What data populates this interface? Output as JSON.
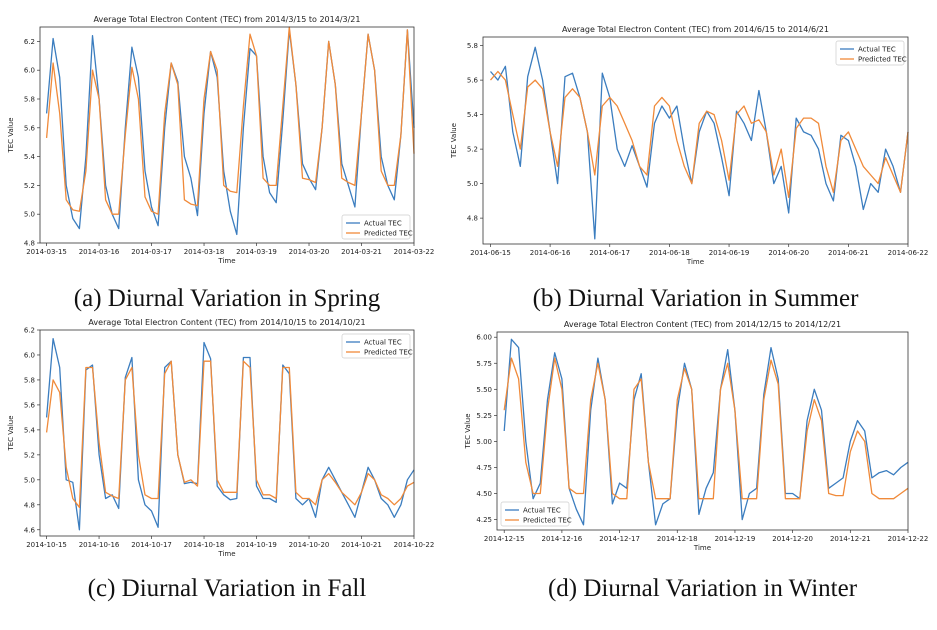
{
  "colors": {
    "actual": "#3b7dbf",
    "predicted": "#f08a3a"
  },
  "chart_data": [
    {
      "type": "line",
      "title": "Average Total Electron Content (TEC) from 2014/3/15 to 2014/3/21",
      "xlabel": "Time",
      "ylabel": "TEC Value",
      "caption": "(a) Diurnal Variation in Spring",
      "legend": "bottom-right",
      "xlim": [
        "2014-03-14T21:00",
        "2014-03-22T00:00"
      ],
      "ylim": [
        4.8,
        6.3
      ],
      "x_ticks": [
        "2014-03-15",
        "2014-03-16",
        "2014-03-17",
        "2014-03-18",
        "2014-03-19",
        "2014-03-20",
        "2014-03-21",
        "2014-03-22"
      ],
      "y_ticks": [
        "4.8",
        "5.0",
        "5.2",
        "5.4",
        "5.6",
        "5.8",
        "6.0",
        "6.2"
      ],
      "x_day_values": [
        0,
        0.125,
        0.25,
        0.375,
        0.5,
        0.625,
        0.75,
        0.875,
        1,
        1.125,
        1.25,
        1.375,
        1.5,
        1.625,
        1.75,
        1.875,
        2,
        2.125,
        2.25,
        2.375,
        2.5,
        2.625,
        2.75,
        2.875,
        3,
        3.125,
        3.25,
        3.375,
        3.5,
        3.625,
        3.75,
        3.875,
        4,
        4.125,
        4.25,
        4.375,
        4.5,
        4.625,
        4.75,
        4.875,
        5,
        5.125,
        5.25,
        5.375,
        5.5,
        5.625,
        5.75,
        5.875,
        6,
        6.125,
        6.25,
        6.375,
        6.5,
        6.625,
        6.75,
        6.875,
        7
      ],
      "series": [
        {
          "name": "Actual TEC",
          "values": [
            5.7,
            6.22,
            5.95,
            5.2,
            4.97,
            4.9,
            5.4,
            6.24,
            5.8,
            5.2,
            5.0,
            4.9,
            5.6,
            6.16,
            5.95,
            5.3,
            5.05,
            4.92,
            5.6,
            6.05,
            5.92,
            5.4,
            5.25,
            4.99,
            5.7,
            6.13,
            5.95,
            5.3,
            5.02,
            4.86,
            5.6,
            6.15,
            6.1,
            5.4,
            5.15,
            5.08,
            5.65,
            6.28,
            5.9,
            5.35,
            5.25,
            5.17,
            5.6,
            6.2,
            5.9,
            5.35,
            5.2,
            5.05,
            5.7,
            6.25,
            6.0,
            5.4,
            5.2,
            5.1,
            5.55,
            6.28,
            5.6
          ]
        },
        {
          "name": "Predicted TEC",
          "values": [
            5.53,
            6.05,
            5.7,
            5.1,
            5.03,
            5.02,
            5.3,
            6.0,
            5.8,
            5.1,
            5.0,
            5.0,
            5.55,
            6.02,
            5.8,
            5.12,
            5.02,
            5.0,
            5.7,
            6.05,
            5.9,
            5.1,
            5.07,
            5.06,
            5.8,
            6.13,
            6.0,
            5.2,
            5.16,
            5.15,
            5.75,
            6.25,
            6.1,
            5.25,
            5.2,
            5.2,
            5.75,
            6.3,
            5.9,
            5.25,
            5.24,
            5.22,
            5.6,
            6.2,
            5.9,
            5.25,
            5.22,
            5.2,
            5.7,
            6.25,
            6.0,
            5.3,
            5.2,
            5.2,
            5.55,
            6.28,
            5.42
          ]
        }
      ]
    },
    {
      "type": "line",
      "title": "Average Total Electron Content (TEC) from 2014/6/15 to 2014/6/21",
      "xlabel": "Time",
      "ylabel": "TEC Value",
      "caption": "(b) Diurnal Variation in Summer",
      "legend": "top-right",
      "xlim": [
        "2014-06-14T21:00",
        "2014-06-22T00:00"
      ],
      "ylim": [
        4.65,
        5.85
      ],
      "x_ticks": [
        "2014-06-15",
        "2014-06-16",
        "2014-06-17",
        "2014-06-18",
        "2014-06-19",
        "2014-06-20",
        "2014-06-21",
        "2014-06-22"
      ],
      "y_ticks": [
        "4.8",
        "5.0",
        "5.2",
        "5.4",
        "5.6",
        "5.8"
      ],
      "x_day_values": [
        0,
        0.125,
        0.25,
        0.375,
        0.5,
        0.625,
        0.75,
        0.875,
        1,
        1.125,
        1.25,
        1.375,
        1.5,
        1.625,
        1.75,
        1.875,
        2,
        2.125,
        2.25,
        2.375,
        2.5,
        2.625,
        2.75,
        2.875,
        3,
        3.125,
        3.25,
        3.375,
        3.5,
        3.625,
        3.75,
        3.875,
        4,
        4.125,
        4.25,
        4.375,
        4.5,
        4.625,
        4.75,
        4.875,
        5,
        5.125,
        5.25,
        5.375,
        5.5,
        5.625,
        5.75,
        5.875,
        6,
        6.125,
        6.25,
        6.375,
        6.5,
        6.625,
        6.75,
        6.875,
        7
      ],
      "series": [
        {
          "name": "Actual TEC",
          "values": [
            5.65,
            5.6,
            5.68,
            5.3,
            5.1,
            5.62,
            5.79,
            5.6,
            5.3,
            5.0,
            5.62,
            5.64,
            5.5,
            5.3,
            4.68,
            5.64,
            5.5,
            5.2,
            5.1,
            5.22,
            5.1,
            4.98,
            5.35,
            5.45,
            5.38,
            5.45,
            5.2,
            5.0,
            5.3,
            5.42,
            5.35,
            5.15,
            4.93,
            5.42,
            5.35,
            5.25,
            5.54,
            5.3,
            5.0,
            5.1,
            4.83,
            5.38,
            5.3,
            5.28,
            5.2,
            5.0,
            4.9,
            5.28,
            5.25,
            5.1,
            4.85,
            5.0,
            4.95,
            5.2,
            5.1,
            4.95,
            5.3
          ]
        },
        {
          "name": "Predicted TEC",
          "values": [
            5.6,
            5.65,
            5.6,
            5.4,
            5.2,
            5.56,
            5.6,
            5.55,
            5.3,
            5.1,
            5.5,
            5.55,
            5.5,
            5.3,
            5.05,
            5.45,
            5.5,
            5.45,
            5.35,
            5.25,
            5.1,
            5.05,
            5.45,
            5.5,
            5.45,
            5.25,
            5.1,
            5.0,
            5.35,
            5.42,
            5.4,
            5.25,
            5.02,
            5.4,
            5.45,
            5.35,
            5.37,
            5.3,
            5.05,
            5.2,
            4.92,
            5.32,
            5.38,
            5.38,
            5.35,
            5.1,
            4.95,
            5.25,
            5.3,
            5.2,
            5.1,
            5.05,
            5.0,
            5.15,
            5.05,
            4.95,
            5.3
          ]
        }
      ]
    },
    {
      "type": "line",
      "title": "Average Total Electron Content (TEC) from 2014/10/15 to 2014/10/21",
      "xlabel": "Time",
      "ylabel": "TEC Value",
      "caption": "(c) Diurnal Variation in Fall",
      "legend": "top-right",
      "xlim": [
        "2014-10-14T21:00",
        "2014-10-22T00:00"
      ],
      "ylim": [
        4.55,
        6.2
      ],
      "x_ticks": [
        "2014-10-15",
        "2014-10-16",
        "2014-10-17",
        "2014-10-18",
        "2014-10-19",
        "2014-10-20",
        "2014-10-21",
        "2014-10-22"
      ],
      "y_ticks": [
        "4.6",
        "4.8",
        "5.0",
        "5.2",
        "5.4",
        "5.6",
        "5.8",
        "6.0",
        "6.2"
      ],
      "x_day_values": [
        0,
        0.125,
        0.25,
        0.375,
        0.5,
        0.625,
        0.75,
        0.875,
        1,
        1.125,
        1.25,
        1.375,
        1.5,
        1.625,
        1.75,
        1.875,
        2,
        2.125,
        2.25,
        2.375,
        2.5,
        2.625,
        2.75,
        2.875,
        3,
        3.125,
        3.25,
        3.375,
        3.5,
        3.625,
        3.75,
        3.875,
        4,
        4.125,
        4.25,
        4.375,
        4.5,
        4.625,
        4.75,
        4.875,
        5,
        5.125,
        5.25,
        5.375,
        5.5,
        5.625,
        5.75,
        5.875,
        6,
        6.125,
        6.25,
        6.375,
        6.5,
        6.625,
        6.75,
        6.875,
        7
      ],
      "series": [
        {
          "name": "Actual TEC",
          "values": [
            5.5,
            6.13,
            5.9,
            5.0,
            4.98,
            4.6,
            5.88,
            5.92,
            5.2,
            4.85,
            4.88,
            4.77,
            5.82,
            5.98,
            5.0,
            4.8,
            4.75,
            4.62,
            5.9,
            5.95,
            5.2,
            4.97,
            4.98,
            4.97,
            6.1,
            5.97,
            4.95,
            4.88,
            4.84,
            4.85,
            5.98,
            5.98,
            4.95,
            4.85,
            4.85,
            4.82,
            5.92,
            5.85,
            4.85,
            4.8,
            4.85,
            4.7,
            5.0,
            5.1,
            5.0,
            4.9,
            4.8,
            4.7,
            4.9,
            5.1,
            5.0,
            4.85,
            4.8,
            4.7,
            4.8,
            5.0,
            5.08
          ]
        },
        {
          "name": "Predicted TEC",
          "values": [
            5.38,
            5.8,
            5.7,
            5.1,
            4.85,
            4.78,
            5.9,
            5.9,
            5.3,
            4.9,
            4.87,
            4.85,
            5.8,
            5.9,
            5.2,
            4.88,
            4.85,
            4.85,
            5.85,
            5.95,
            5.2,
            4.98,
            5.0,
            4.95,
            5.95,
            5.95,
            5.0,
            4.9,
            4.9,
            4.9,
            5.95,
            5.9,
            5.0,
            4.88,
            4.88,
            4.85,
            5.9,
            5.9,
            4.9,
            4.85,
            4.85,
            4.8,
            5.0,
            5.05,
            4.98,
            4.9,
            4.85,
            4.8,
            4.9,
            5.05,
            5.0,
            4.88,
            4.85,
            4.8,
            4.85,
            4.95,
            4.98
          ]
        }
      ]
    },
    {
      "type": "line",
      "title": "Average Total Electron Content (TEC) from 2014/12/15 to 2014/12/21",
      "xlabel": "Time",
      "ylabel": "TEC Value",
      "caption": "(d) Diurnal Variation in Winter",
      "legend": "bottom-left",
      "xlim": [
        "2014-12-14T21:00",
        "2014-12-22T00:00"
      ],
      "ylim": [
        4.15,
        6.05
      ],
      "x_ticks": [
        "2014-12-15",
        "2014-12-16",
        "2014-12-17",
        "2014-12-18",
        "2014-12-19",
        "2014-12-20",
        "2014-12-21",
        "2014-12-22"
      ],
      "y_ticks": [
        "4.25",
        "4.50",
        "4.75",
        "5.00",
        "5.25",
        "5.50",
        "5.75",
        "6.00"
      ],
      "x_day_values": [
        0,
        0.125,
        0.25,
        0.375,
        0.5,
        0.625,
        0.75,
        0.875,
        1,
        1.125,
        1.25,
        1.375,
        1.5,
        1.625,
        1.75,
        1.875,
        2,
        2.125,
        2.25,
        2.375,
        2.5,
        2.625,
        2.75,
        2.875,
        3,
        3.125,
        3.25,
        3.375,
        3.5,
        3.625,
        3.75,
        3.875,
        4,
        4.125,
        4.25,
        4.375,
        4.5,
        4.625,
        4.75,
        4.875,
        5,
        5.125,
        5.25,
        5.375,
        5.5,
        5.625,
        5.75,
        5.875,
        6,
        6.125,
        6.25,
        6.375,
        6.5,
        6.625,
        6.75,
        6.875,
        7
      ],
      "series": [
        {
          "name": "Actual TEC",
          "values": [
            5.1,
            5.98,
            5.9,
            5.0,
            4.45,
            4.6,
            5.4,
            5.85,
            5.6,
            4.55,
            4.35,
            4.2,
            5.3,
            5.8,
            5.4,
            4.4,
            4.6,
            4.55,
            5.4,
            5.65,
            4.8,
            4.2,
            4.4,
            4.45,
            5.3,
            5.75,
            5.5,
            4.3,
            4.55,
            4.7,
            5.5,
            5.88,
            5.3,
            4.25,
            4.5,
            4.55,
            5.45,
            5.9,
            5.6,
            4.5,
            4.5,
            4.45,
            5.2,
            5.5,
            5.3,
            4.55,
            4.6,
            4.65,
            5.0,
            5.2,
            5.1,
            4.65,
            4.7,
            4.72,
            4.68,
            4.75,
            4.8
          ]
        },
        {
          "name": "Predicted TEC",
          "values": [
            5.3,
            5.8,
            5.6,
            4.8,
            4.5,
            4.5,
            5.3,
            5.8,
            5.5,
            4.55,
            4.5,
            4.5,
            5.4,
            5.75,
            5.4,
            4.5,
            4.45,
            4.45,
            5.5,
            5.6,
            4.8,
            4.45,
            4.45,
            4.45,
            5.4,
            5.7,
            5.5,
            4.45,
            4.45,
            4.45,
            5.5,
            5.75,
            5.3,
            4.45,
            4.45,
            4.45,
            5.4,
            5.78,
            5.55,
            4.45,
            4.45,
            4.45,
            5.1,
            5.4,
            5.2,
            4.5,
            4.48,
            4.48,
            4.9,
            5.1,
            5.0,
            4.5,
            4.45,
            4.45,
            4.45,
            4.5,
            4.55
          ]
        }
      ]
    }
  ]
}
